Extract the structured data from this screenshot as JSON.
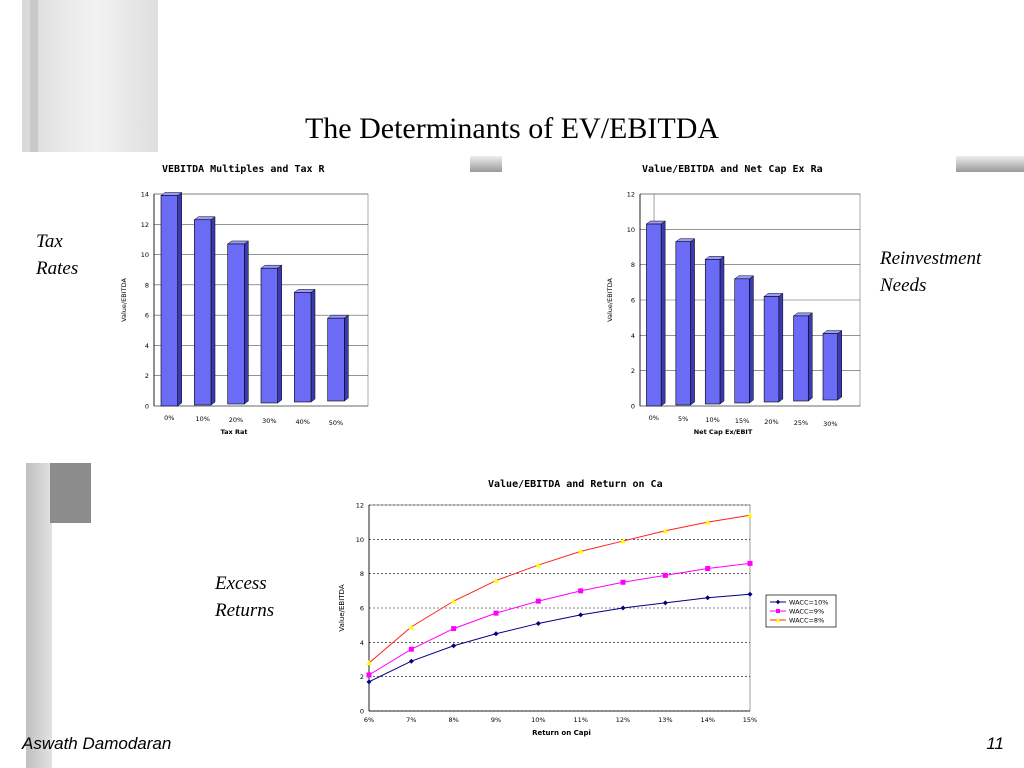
{
  "slide": {
    "title": "The Determinants of EV/EBITDA",
    "label_tax": [
      "Tax",
      "Rates"
    ],
    "label_reinvest": [
      "Reinvestment",
      "Needs"
    ],
    "label_excess": [
      "Excess",
      "Returns"
    ],
    "footer_author": "Aswath Damodaran",
    "page_number": "11",
    "colors": {
      "bar": "#6b6bf5",
      "bar_side": "#3a3ab0",
      "grid": "#000000",
      "floor": "#8a8a8a"
    }
  },
  "chart_data": [
    {
      "type": "bar",
      "title": "VEBITDA Multiples and Tax R",
      "xlabel": "Tax Rat",
      "ylabel": "Value/EBITDA",
      "categories": [
        "0%",
        "10%",
        "20%",
        "30%",
        "40%",
        "50%"
      ],
      "values": [
        13.9,
        12.3,
        10.7,
        9.1,
        7.5,
        5.8
      ],
      "ylim": [
        0,
        14
      ],
      "yticks": [
        "0",
        "2",
        "4",
        "6",
        "8",
        "10",
        "12",
        "14"
      ],
      "grid": true
    },
    {
      "type": "bar",
      "title": "Value/EBITDA and Net Cap Ex Ra",
      "xlabel": "Net Cap Ex/EBIT",
      "ylabel": "Value/EBITDA",
      "categories": [
        "0%",
        "5%",
        "10%",
        "15%",
        "20%",
        "25%",
        "30%"
      ],
      "values": [
        10.3,
        9.3,
        8.3,
        7.2,
        6.2,
        5.1,
        4.1
      ],
      "ylim": [
        0,
        12
      ],
      "yticks": [
        "0",
        "2",
        "4",
        "6",
        "8",
        "10",
        "12"
      ],
      "grid": true
    },
    {
      "type": "line",
      "title": "Value/EBITDA and Return on Ca",
      "xlabel": "Return on Capi",
      "ylabel": "Value/EBITDA",
      "categories": [
        "6%",
        "7%",
        "8%",
        "9%",
        "10%",
        "11%",
        "12%",
        "13%",
        "14%",
        "15%"
      ],
      "ylim": [
        0,
        12
      ],
      "yticks": [
        "0",
        "2",
        "4",
        "6",
        "8",
        "10",
        "12"
      ],
      "grid": true,
      "legend": "right",
      "series": [
        {
          "name": "WACC=10%",
          "color": "#000080",
          "values": [
            1.7,
            2.9,
            3.8,
            4.5,
            5.1,
            5.6,
            6.0,
            6.3,
            6.6,
            6.8
          ]
        },
        {
          "name": "WACC=9%",
          "color": "#ff00ff",
          "values": [
            2.1,
            3.6,
            4.8,
            5.7,
            6.4,
            7.0,
            7.5,
            7.9,
            8.3,
            8.6
          ]
        },
        {
          "name": "WACC=8%",
          "color": "#ffff00",
          "values": [
            2.8,
            4.9,
            6.4,
            7.6,
            8.5,
            9.3,
            9.9,
            10.5,
            11.0,
            11.4
          ]
        }
      ]
    }
  ]
}
